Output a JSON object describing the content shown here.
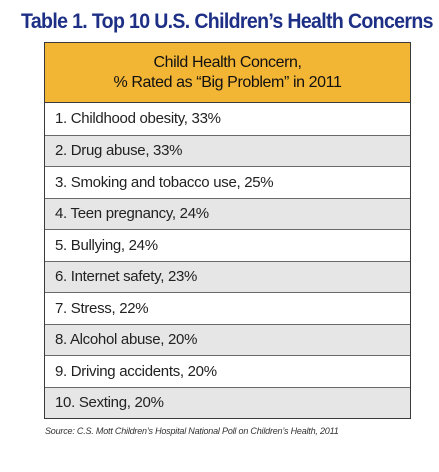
{
  "chart_data": {
    "type": "table",
    "title": "Table 1. Top 10 U.S. Children’s Health Concerns",
    "header": [
      "Child Health Concern,",
      "% Rated as “Big Problem” in 2011"
    ],
    "rows": [
      {
        "rank": 1,
        "concern": "Childhood obesity",
        "percent": 33,
        "label": "1. Childhood obesity, 33%"
      },
      {
        "rank": 2,
        "concern": "Drug abuse",
        "percent": 33,
        "label": "2. Drug abuse, 33%"
      },
      {
        "rank": 3,
        "concern": "Smoking and tobacco use",
        "percent": 25,
        "label": "3. Smoking and tobacco use, 25%"
      },
      {
        "rank": 4,
        "concern": "Teen pregnancy",
        "percent": 24,
        "label": "4. Teen pregnancy, 24%"
      },
      {
        "rank": 5,
        "concern": "Bullying",
        "percent": 24,
        "label": "5. Bullying, 24%"
      },
      {
        "rank": 6,
        "concern": "Internet safety",
        "percent": 23,
        "label": "6. Internet safety, 23%"
      },
      {
        "rank": 7,
        "concern": "Stress",
        "percent": 22,
        "label": "7. Stress, 22%"
      },
      {
        "rank": 8,
        "concern": "Alcohol abuse",
        "percent": 20,
        "label": "8. Alcohol abuse, 20%"
      },
      {
        "rank": 9,
        "concern": "Driving accidents",
        "percent": 20,
        "label": "9. Driving accidents, 20%"
      },
      {
        "rank": 10,
        "concern": "Sexting",
        "percent": 20,
        "label": "10. Sexting, 20%"
      }
    ],
    "source": "Source: C.S. Mott Children’s Hospital National Poll on Children’s Health, 2011"
  },
  "colors": {
    "title": "#1e2f86",
    "header_background": "#f3b534",
    "row_shade": "#e6e6e6",
    "row_plain": "#ffffff",
    "border": "#3a3a3a"
  }
}
